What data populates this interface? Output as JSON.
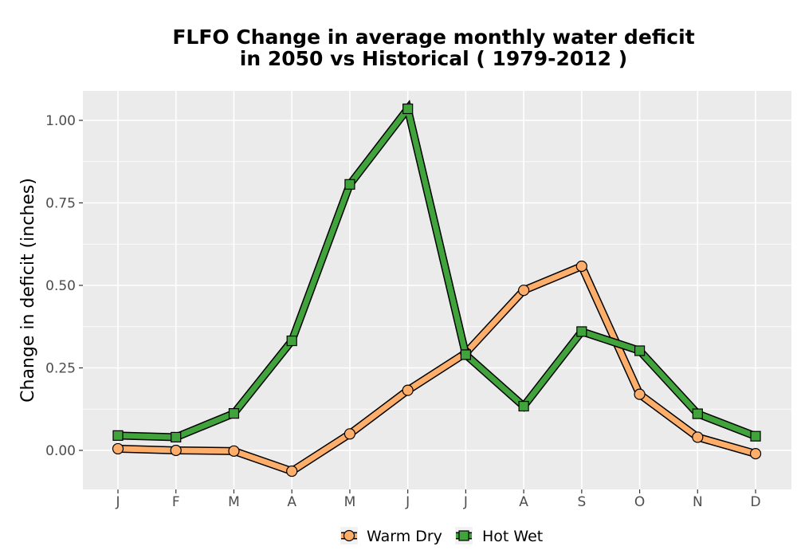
{
  "chart_data": {
    "type": "line",
    "title": "FLFO  Change in average monthly water deficit\nin 2050 vs Historical ( 1979-2012 )",
    "xlabel": "",
    "ylabel": "Change in deficit (inches)",
    "categories": [
      "J",
      "F",
      "M",
      "A",
      "M",
      "J",
      "J",
      "A",
      "S",
      "O",
      "N",
      "D"
    ],
    "y_ticks": [
      0.0,
      0.25,
      0.5,
      0.75,
      1.0
    ],
    "y_tick_labels": [
      "0.00",
      "0.25",
      "0.50",
      "0.75",
      "1.00"
    ],
    "ylim": [
      -0.12,
      1.09
    ],
    "grid": true,
    "legend_position": "bottom",
    "series": [
      {
        "name": "Warm Dry",
        "marker": "circle",
        "color": "#fdae6b",
        "values": [
          0.005,
          0.0,
          -0.002,
          -0.063,
          0.05,
          0.182,
          0.295,
          0.485,
          0.558,
          0.17,
          0.04,
          -0.01
        ]
      },
      {
        "name": "Hot Wet",
        "marker": "square",
        "color": "#41a33c",
        "values": [
          0.045,
          0.04,
          0.112,
          0.332,
          0.806,
          1.035,
          0.29,
          0.134,
          0.36,
          0.302,
          0.111,
          0.043
        ]
      }
    ]
  },
  "colors": {
    "panel_background": "#ebebeb",
    "grid_major": "#ffffff",
    "outline": "#000000"
  }
}
